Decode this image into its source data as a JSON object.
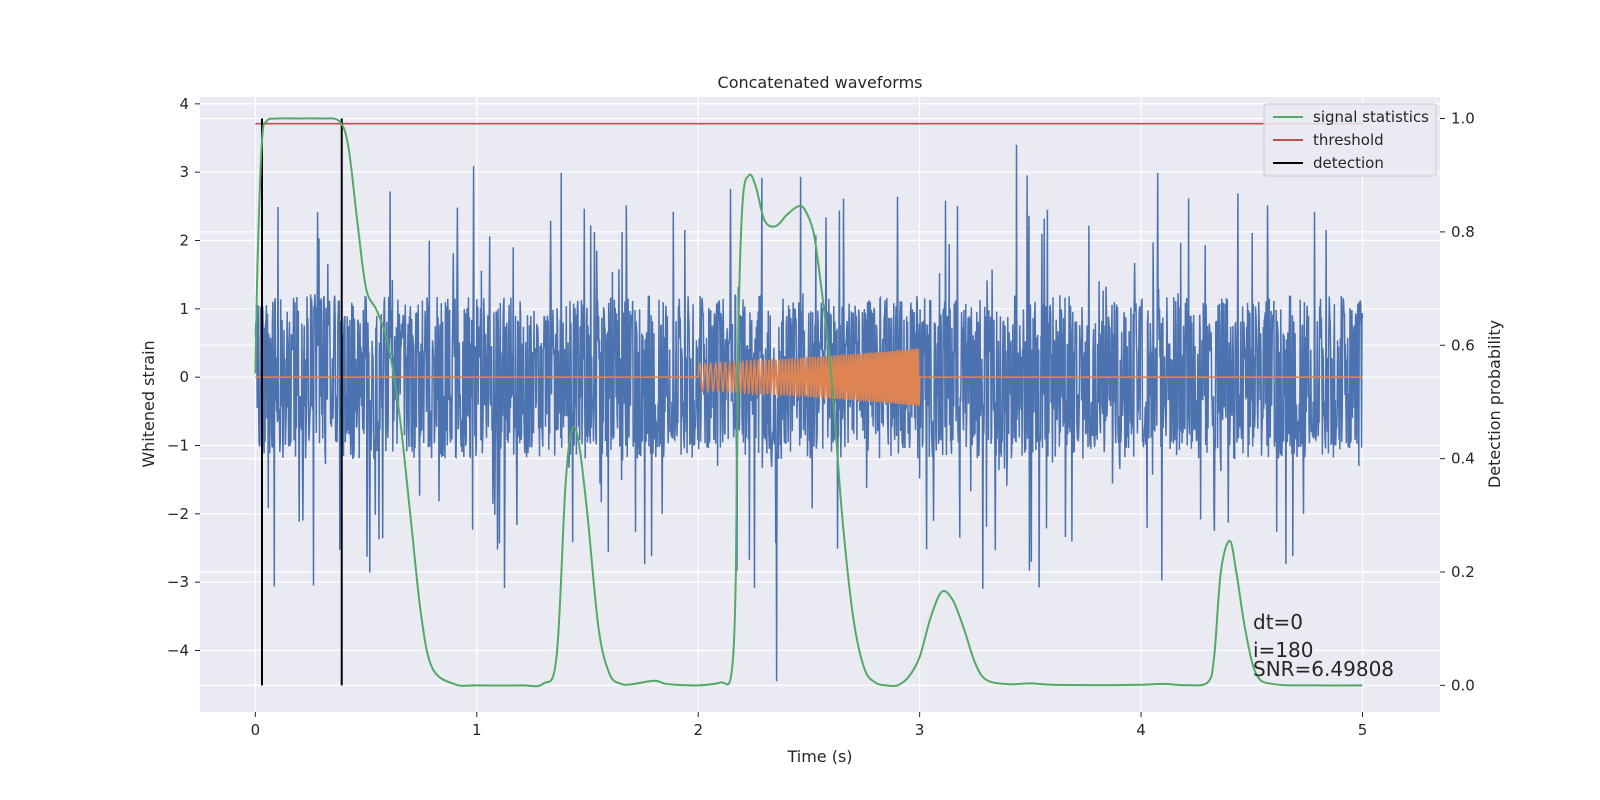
{
  "chart_data": {
    "type": "line",
    "title": "Concatenated waveforms",
    "xlabel": "Time (s)",
    "ylabel": "Whitened strain",
    "y2label": "Detection probability",
    "xlim": [
      -0.25,
      5.35
    ],
    "ylim": [
      -4.9,
      4.1
    ],
    "y2lim": [
      -0.047,
      1.038
    ],
    "x_ticks": [
      0,
      1,
      2,
      3,
      4,
      5
    ],
    "y_ticks": [
      -4,
      -3,
      -2,
      -1,
      0,
      1,
      2,
      3,
      4
    ],
    "y2_ticks": [
      0.0,
      0.2,
      0.4,
      0.6,
      0.8,
      1.0
    ],
    "legend_position": "top-right",
    "series": [
      {
        "name": "strain",
        "axis": "left",
        "color": "#4c72b0",
        "kind": "noise",
        "x_range": [
          0,
          5
        ],
        "typical_range": [
          -1.2,
          1.2
        ],
        "extremes": [
          -4.45,
          3.4
        ]
      },
      {
        "name": "injected signal",
        "axis": "left",
        "color": "#dd8452",
        "kind": "chirp",
        "x_range": [
          2.0,
          3.0
        ],
        "amplitude_range": [
          0.2,
          0.42
        ]
      },
      {
        "name": "signal statistics",
        "axis": "right",
        "color": "#55a868",
        "x": [
          0.0,
          0.01,
          0.03,
          0.05,
          0.1,
          0.2,
          0.3,
          0.38,
          0.42,
          0.46,
          0.5,
          0.55,
          0.6,
          0.65,
          0.7,
          0.75,
          0.8,
          0.9,
          1.0,
          1.2,
          1.3,
          1.36,
          1.4,
          1.43,
          1.46,
          1.5,
          1.55,
          1.6,
          1.65,
          1.7,
          1.8,
          1.85,
          1.9,
          2.0,
          2.1,
          2.15,
          2.17,
          2.18,
          2.2,
          2.23,
          2.26,
          2.3,
          2.35,
          2.4,
          2.45,
          2.48,
          2.52,
          2.55,
          2.6,
          2.65,
          2.7,
          2.75,
          2.8,
          2.85,
          2.9,
          2.95,
          3.0,
          3.05,
          3.1,
          3.15,
          3.2,
          3.25,
          3.3,
          3.4,
          3.5,
          3.6,
          3.8,
          4.0,
          4.1,
          4.2,
          4.3,
          4.33,
          4.36,
          4.4,
          4.43,
          4.47,
          4.52,
          4.6,
          4.8,
          5.0
        ],
        "values": [
          0.55,
          0.75,
          0.96,
          0.995,
          1.0,
          1.0,
          1.0,
          0.995,
          0.95,
          0.82,
          0.7,
          0.66,
          0.6,
          0.48,
          0.3,
          0.12,
          0.03,
          0.002,
          0.0,
          0.0,
          0.003,
          0.05,
          0.35,
          0.45,
          0.43,
          0.3,
          0.1,
          0.02,
          0.003,
          0.002,
          0.008,
          0.003,
          0.001,
          0.0,
          0.005,
          0.02,
          0.2,
          0.6,
          0.85,
          0.9,
          0.88,
          0.82,
          0.81,
          0.83,
          0.845,
          0.84,
          0.8,
          0.72,
          0.55,
          0.3,
          0.12,
          0.03,
          0.005,
          0.0,
          0.0,
          0.015,
          0.05,
          0.12,
          0.165,
          0.15,
          0.1,
          0.04,
          0.01,
          0.002,
          0.0035,
          0.001,
          0.0005,
          0.001,
          0.0025,
          0.0005,
          0.005,
          0.05,
          0.2,
          0.255,
          0.2,
          0.1,
          0.02,
          0.002,
          0.0,
          0.0
        ]
      },
      {
        "name": "threshold",
        "axis": "right",
        "color": "#c44e52",
        "x": [
          0,
          5
        ],
        "values": [
          0.991,
          0.991
        ]
      },
      {
        "name": "detection",
        "axis": "right",
        "color": "#000000",
        "x": [
          0.03,
          0.39
        ],
        "values": [
          1.0,
          1.0
        ]
      }
    ],
    "legend": [
      {
        "label": "signal statistics",
        "color": "#55a868"
      },
      {
        "label": "threshold",
        "color": "#c44e52"
      },
      {
        "label": "detection",
        "color": "#000000"
      }
    ],
    "annotations": [
      "dt=0",
      "i=180",
      "SNR=6.49808"
    ]
  },
  "colors": {
    "background": "#eaeaf2",
    "grid": "#ffffff",
    "text": "#262626"
  }
}
